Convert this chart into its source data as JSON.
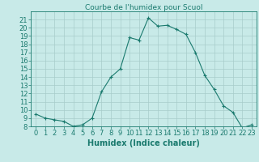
{
  "title": "Courbe de l'humidex pour Scuol",
  "xlabel": "Humidex (Indice chaleur)",
  "x_values": [
    0,
    1,
    2,
    3,
    4,
    5,
    6,
    7,
    8,
    9,
    10,
    11,
    12,
    13,
    14,
    15,
    16,
    17,
    18,
    19,
    20,
    21,
    22,
    23
  ],
  "y_values": [
    9.5,
    9.0,
    8.8,
    8.6,
    8.0,
    8.2,
    9.0,
    12.2,
    14.0,
    15.0,
    18.8,
    18.5,
    21.2,
    20.2,
    20.3,
    19.8,
    19.2,
    17.0,
    14.2,
    12.5,
    10.5,
    9.7,
    7.8,
    8.2
  ],
  "line_color": "#1a7a6e",
  "bg_color": "#c8eae8",
  "grid_color": "#a8ccca",
  "text_color": "#1a7a6e",
  "ylim": [
    8,
    22
  ],
  "xlim": [
    -0.5,
    23.5
  ],
  "yticks": [
    8,
    9,
    10,
    11,
    12,
    13,
    14,
    15,
    16,
    17,
    18,
    19,
    20,
    21
  ],
  "xticks": [
    0,
    1,
    2,
    3,
    4,
    5,
    6,
    7,
    8,
    9,
    10,
    11,
    12,
    13,
    14,
    15,
    16,
    17,
    18,
    19,
    20,
    21,
    22,
    23
  ],
  "tick_fontsize": 6,
  "xlabel_fontsize": 7,
  "title_fontsize": 6.5
}
